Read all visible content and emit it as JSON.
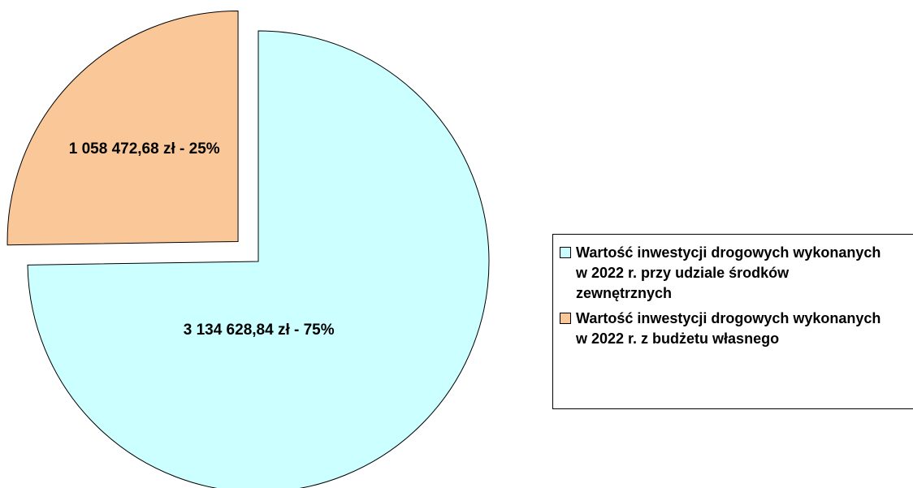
{
  "chart_data": {
    "type": "pie",
    "categories": [
      "Wartość inwestycji drogowych wykonanych w 2022 r. przy udziale środków zewnętrznych",
      "Wartość inwestycji drogowych wykonanych w 2022 r. z budżetu własnego"
    ],
    "values": [
      3134628.84,
      1058472.68
    ],
    "value_labels": [
      "3 134 628,84 zł - 75%",
      "1 058 472,68 zł - 25%"
    ],
    "colors": [
      "#ccffff",
      "#fac898"
    ],
    "explode": [
      false,
      true
    ],
    "legend": "right"
  }
}
